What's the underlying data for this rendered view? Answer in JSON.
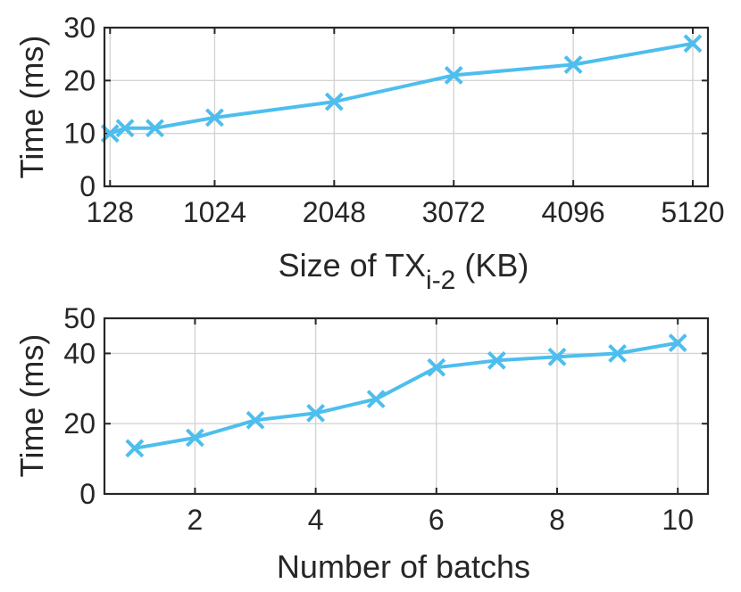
{
  "chart_data": [
    {
      "type": "line",
      "xlabel_main": "Size of TX",
      "xlabel_sub": "i-2",
      "xlabel_unit": " (KB)",
      "ylabel": "Time (ms)",
      "x": [
        128,
        256,
        512,
        1024,
        2048,
        3072,
        4096,
        5120
      ],
      "xticks": [
        128,
        1024,
        2048,
        3072,
        4096,
        5120
      ],
      "xtick_labels": [
        "128",
        "1024",
        "2048",
        "3072",
        "4096",
        "5120"
      ],
      "yticks": [
        0,
        10,
        20,
        30
      ],
      "ytick_labels": [
        "0",
        "10",
        "20",
        "30"
      ],
      "xlim": [
        80,
        5250
      ],
      "ylim": [
        0,
        30
      ],
      "grid": true,
      "series": [
        {
          "values": [
            10,
            11,
            11,
            13,
            16,
            21,
            23,
            27
          ],
          "color": "#4DBEEE",
          "marker": "x"
        }
      ]
    },
    {
      "type": "line",
      "xlabel": "Number of batchs",
      "ylabel": "Time (ms)",
      "x": [
        1,
        2,
        3,
        4,
        5,
        6,
        7,
        8,
        9,
        10
      ],
      "xticks": [
        2,
        4,
        6,
        8,
        10
      ],
      "xtick_labels": [
        "2",
        "4",
        "6",
        "8",
        "10"
      ],
      "yticks": [
        0,
        20,
        40,
        50
      ],
      "ytick_labels": [
        "0",
        "20",
        "40",
        "50"
      ],
      "xlim": [
        0.5,
        10.5
      ],
      "ylim": [
        0,
        50
      ],
      "grid": true,
      "series": [
        {
          "values": [
            13,
            16,
            21,
            23,
            27,
            36,
            38,
            39,
            40,
            43
          ],
          "color": "#4DBEEE",
          "marker": "x"
        }
      ]
    }
  ]
}
